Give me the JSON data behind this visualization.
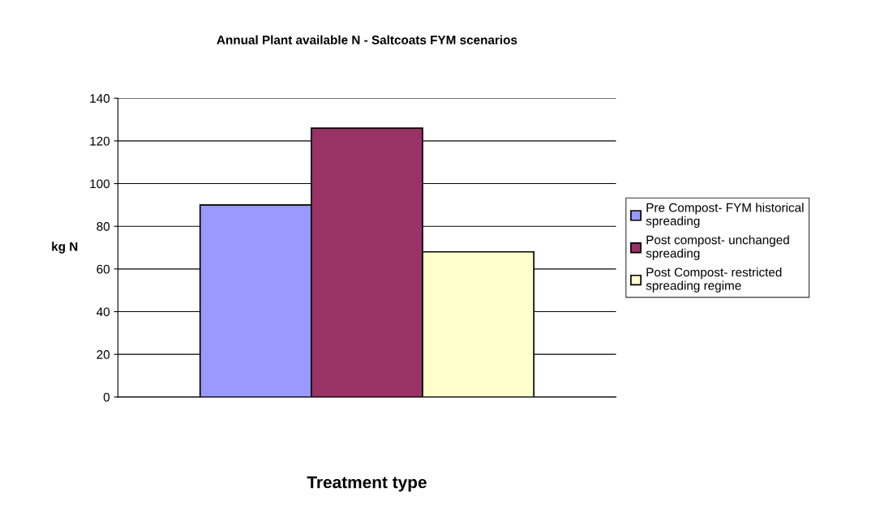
{
  "chart_data": {
    "type": "bar",
    "title": "Annual Plant available N - Saltcoats FYM scenarios",
    "xlabel": "Treatment type",
    "ylabel": "kg N",
    "categories": [
      null
    ],
    "series": [
      {
        "name": "Pre Compost- FYM historical\nspreading",
        "color": "#9999ff",
        "values": [
          90
        ]
      },
      {
        "name": "Post compost- unchanged\nspreading",
        "color": "#993366",
        "values": [
          126
        ]
      },
      {
        "name": "Post Compost- restricted\nspreading regime",
        "color": "#ffffcc",
        "values": [
          68
        ]
      }
    ],
    "ylim": [
      0,
      140
    ],
    "yticks": [
      0,
      20,
      40,
      60,
      80,
      100,
      120,
      140
    ],
    "grid": "y",
    "legend": "right",
    "tick_labels": "y"
  }
}
